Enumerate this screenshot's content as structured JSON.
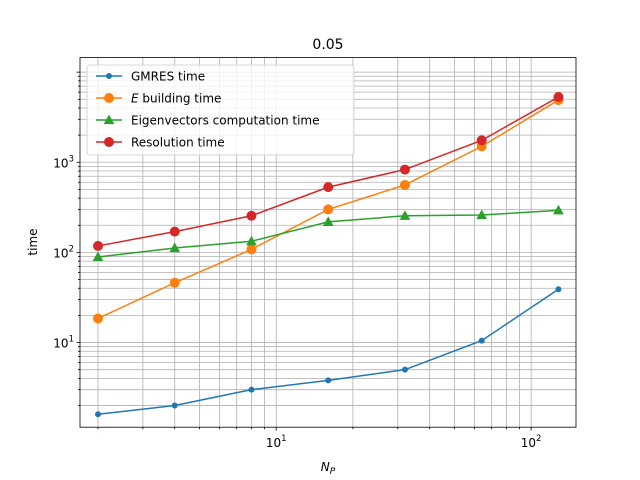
{
  "chart_data": {
    "type": "line",
    "title": "0.05",
    "xlabel": "N_P",
    "ylabel": "time",
    "xscale": "log",
    "yscale": "log",
    "xlim": [
      1.7,
      150
    ],
    "ylim": [
      1.15,
      14500
    ],
    "grid": "both-major-minor",
    "legend_position": "upper-left",
    "x": [
      2,
      4,
      8,
      16,
      32,
      64,
      128
    ],
    "series": [
      {
        "name": "GMRES time",
        "color": "#1f77b4",
        "marker": "small-circle",
        "values": [
          1.6,
          2.0,
          3.0,
          3.8,
          5.0,
          10.5,
          39
        ]
      },
      {
        "name": "E building time",
        "name_italic_prefix": "E",
        "name_rest": " building time",
        "color": "#ff7f0e",
        "marker": "circle",
        "values": [
          18.5,
          46,
          108,
          300,
          560,
          1500,
          4900
        ]
      },
      {
        "name": "Eigenvectors computation time",
        "color": "#2ca02c",
        "marker": "triangle",
        "values": [
          89,
          112,
          133,
          218,
          255,
          260,
          293
        ]
      },
      {
        "name": "Resolution time",
        "color": "#d62728",
        "marker": "circle",
        "values": [
          118,
          170,
          255,
          530,
          830,
          1750,
          5300
        ]
      }
    ],
    "xticks": [
      {
        "value": 10,
        "label": "10^1"
      },
      {
        "value": 100,
        "label": "10^2"
      }
    ],
    "yticks": [
      {
        "value": 10,
        "label": "10^1"
      },
      {
        "value": 100,
        "label": "10^2"
      },
      {
        "value": 1000,
        "label": "10^3"
      }
    ]
  }
}
